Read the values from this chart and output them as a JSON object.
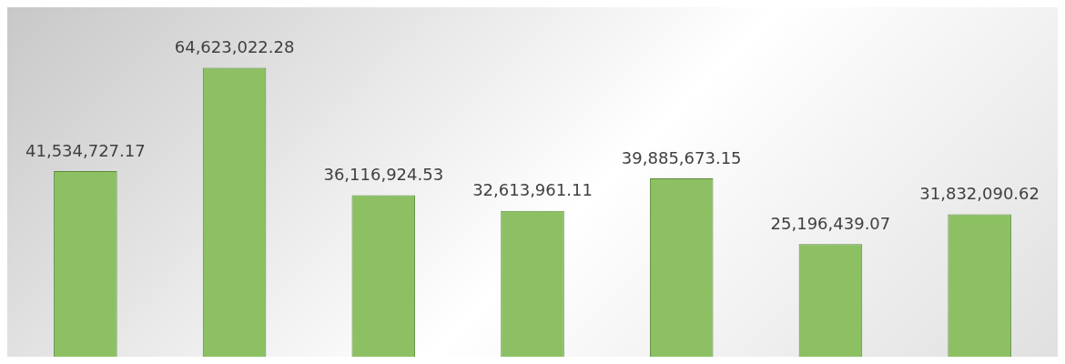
{
  "chart_data": {
    "type": "bar",
    "categories": [
      null,
      null,
      null,
      null,
      null,
      null,
      null
    ],
    "values": [
      41534727.17,
      64623022.28,
      36116924.53,
      32613961.11,
      39885673.15,
      25196439.07,
      31832090.62
    ],
    "value_labels": [
      "41,534,727.17",
      "64,623,022.28",
      "36,116,924.53",
      "32,613,961.11",
      "39,885,673.15",
      "25,196,439.07",
      "31,832,090.62"
    ],
    "color": "#8cc063"
  }
}
